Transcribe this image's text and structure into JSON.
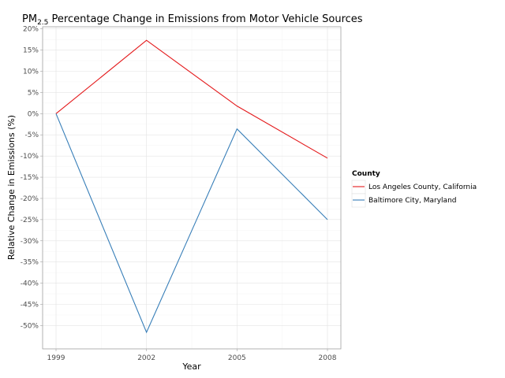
{
  "chart_data": {
    "type": "line",
    "title": {
      "prefix": "PM",
      "subscript": "2.5",
      "suffix": " Percentage Change in Emissions from Motor Vehicle Sources"
    },
    "xlabel": "Year",
    "ylabel": "Relative Change in Emissions (%)",
    "x": [
      1999,
      2002,
      2005,
      2008
    ],
    "x_tick_labels": [
      "1999",
      "2002",
      "2005",
      "2008"
    ],
    "y_ticks": [
      20,
      15,
      10,
      5,
      0,
      -5,
      -10,
      -15,
      -20,
      -25,
      -30,
      -35,
      -40,
      -45,
      -50
    ],
    "y_tick_labels": [
      "20%",
      "15%",
      "10%",
      "5%",
      "0%",
      "-5%",
      "-10%",
      "-15%",
      "-20%",
      "-25%",
      "-30%",
      "-35%",
      "-40%",
      "-45%",
      "-50%"
    ],
    "ylim": [
      -55.5,
      20.5
    ],
    "grid": true,
    "legend": {
      "title": "County",
      "position": "right"
    },
    "series": [
      {
        "name": "Los Angeles County, California",
        "values": [
          0,
          17.3,
          1.8,
          -10.5
        ],
        "color": "#e41a1c"
      },
      {
        "name": "Baltimore City, Maryland",
        "values": [
          0,
          -51.6,
          -3.6,
          -25.0
        ],
        "color": "#377eb8"
      }
    ]
  }
}
